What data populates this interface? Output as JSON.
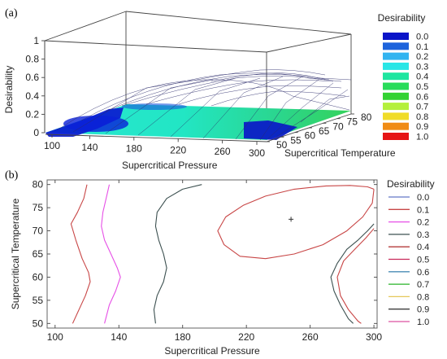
{
  "chart_data": [
    {
      "panel": "(a)",
      "type": "surface3d",
      "xlabel": "Supercritical Pressure",
      "ylabel": "Supercritical Temperature",
      "zlabel": "Desirability",
      "x_ticks": [
        "100",
        "140",
        "180",
        "220",
        "260",
        "300"
      ],
      "y_ticks": [
        "50",
        "55",
        "60",
        "65",
        "70",
        "75",
        "80"
      ],
      "z_ticks": [
        "0",
        "0.2",
        "0.4",
        "0.6",
        "0.8",
        "1"
      ],
      "xlim": [
        100,
        300
      ],
      "ylim": [
        50,
        80
      ],
      "zlim": [
        0,
        1
      ],
      "max_desirability": 0.35,
      "legend_title": "Desirability",
      "legend": [
        {
          "label": "0.0",
          "color": "#0a14c8"
        },
        {
          "label": "0.1",
          "color": "#1e64dc"
        },
        {
          "label": "0.2",
          "color": "#32b4f0"
        },
        {
          "label": "0.3",
          "color": "#28e6e6"
        },
        {
          "label": "0.4",
          "color": "#1ee6a0"
        },
        {
          "label": "0.5",
          "color": "#28dc5a"
        },
        {
          "label": "0.6",
          "color": "#32d232"
        },
        {
          "label": "0.7",
          "color": "#b4f03c"
        },
        {
          "label": "0.8",
          "color": "#f0dc28"
        },
        {
          "label": "0.9",
          "color": "#f08c14"
        },
        {
          "label": "1.0",
          "color": "#e61414"
        }
      ]
    },
    {
      "panel": "(b)",
      "type": "contour",
      "xlabel": "Supercritical Pressure",
      "ylabel": "Supercritical Temperature",
      "x_ticks": [
        "100",
        "140",
        "180",
        "220",
        "260",
        "300"
      ],
      "y_ticks": [
        "50",
        "55",
        "60",
        "65",
        "70",
        "75",
        "80"
      ],
      "xlim": [
        95,
        302
      ],
      "ylim": [
        49,
        81
      ],
      "optimum": {
        "x": 248,
        "y": 72.5
      },
      "legend_title": "Desirability",
      "legend": [
        {
          "label": "0.0",
          "color": "#6478c8"
        },
        {
          "label": "0.1",
          "color": "#c84646"
        },
        {
          "label": "0.2",
          "color": "#e650e6"
        },
        {
          "label": "0.3",
          "color": "#3c5050"
        },
        {
          "label": "0.4",
          "color": "#b43c3c"
        },
        {
          "label": "0.5",
          "color": "#c8285a"
        },
        {
          "label": "0.6",
          "color": "#4a8cb4"
        },
        {
          "label": "0.7",
          "color": "#28b428"
        },
        {
          "label": "0.8",
          "color": "#e6c85a"
        },
        {
          "label": "0.9",
          "color": "#3c3c3c"
        },
        {
          "label": "1.0",
          "color": "#dc50a0"
        }
      ],
      "contours": [
        {
          "level": "0.1",
          "points": [
            [
              120,
              80
            ],
            [
              118,
              77
            ],
            [
              114,
              74
            ],
            [
              110,
              71.5
            ],
            [
              113,
              68
            ],
            [
              117,
              64
            ],
            [
              121,
              61
            ],
            [
              122,
              59
            ],
            [
              119,
              56
            ],
            [
              115,
              53
            ],
            [
              111,
              50
            ]
          ]
        },
        {
          "level": "0.2",
          "points": [
            [
              134,
              80
            ],
            [
              132,
              77
            ],
            [
              130,
              74
            ],
            [
              129,
              71
            ],
            [
              131,
              68
            ],
            [
              135,
              65
            ],
            [
              139,
              62
            ],
            [
              141,
              60
            ],
            [
              138,
              57
            ],
            [
              134,
              54
            ],
            [
              131,
              50
            ]
          ]
        },
        {
          "level": "0.3",
          "points": [
            [
              192,
              80
            ],
            [
              180,
              79
            ],
            [
              170,
              77
            ],
            [
              164,
              74
            ],
            [
              163,
              71
            ],
            [
              165,
              68
            ],
            [
              168,
              65
            ],
            [
              170,
              62
            ],
            [
              168,
              59
            ],
            [
              164,
              56
            ],
            [
              162,
              53
            ],
            [
              163,
              50
            ]
          ]
        },
        {
          "level": "0.3",
          "points": [
            [
              300,
              71.5
            ],
            [
              296,
              70
            ],
            [
              290,
              68
            ],
            [
              283,
              66
            ],
            [
              277,
              63
            ],
            [
              273,
              60
            ],
            [
              275,
              57
            ],
            [
              279,
              54
            ],
            [
              284,
              51
            ],
            [
              287,
              50
            ]
          ]
        },
        {
          "level": "0.1",
          "points": [
            [
              300,
              70.5
            ],
            [
              295,
              68.5
            ],
            [
              288,
              66
            ],
            [
              281,
              63.5
            ],
            [
              277,
              60
            ],
            [
              279,
              56
            ],
            [
              284,
              53
            ],
            [
              290,
              50.5
            ],
            [
              292,
              50
            ]
          ]
        },
        {
          "level": "0.1",
          "points": [
            [
              300,
              79
            ],
            [
              296,
              79.5
            ],
            [
              285,
              79.8
            ],
            [
              270,
              79.7
            ],
            [
              250,
              79
            ],
            [
              232,
              77.5
            ],
            [
              218,
              75.5
            ],
            [
              207,
              73
            ],
            [
              202,
              70
            ],
            [
              206,
              67
            ],
            [
              216,
              64.5
            ],
            [
              232,
              64
            ],
            [
              250,
              65
            ],
            [
              268,
              67
            ],
            [
              283,
              70
            ],
            [
              293,
              73
            ],
            [
              299,
              76
            ],
            [
              300,
              79
            ]
          ]
        }
      ]
    }
  ]
}
